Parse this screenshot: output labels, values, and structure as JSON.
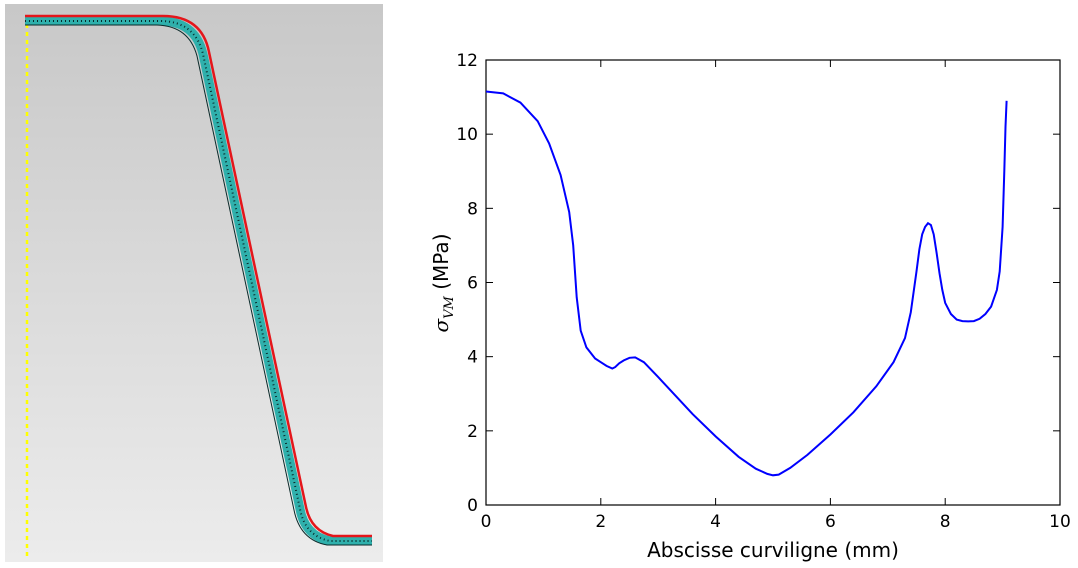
{
  "mesh_figure": {
    "colors": {
      "background_top": "#c8c8c8",
      "background_bottom": "#ececec",
      "symmetry_axis": "#ffff00",
      "mesh_fill": "#2fb0ac",
      "mesh_edges": "#0a2a2a",
      "outer_surface": "#e4161b"
    }
  },
  "chart_data": {
    "type": "line",
    "xlabel": "Abscisse curviligne (mm)",
    "ylabel_symbol": "σ",
    "ylabel_subscript": "VM",
    "ylabel_unit": " (MPa)",
    "xlim": [
      0,
      10
    ],
    "ylim": [
      0,
      12
    ],
    "xticks": [
      0,
      2,
      4,
      6,
      8,
      10
    ],
    "yticks": [
      0,
      2,
      4,
      6,
      8,
      10,
      12
    ],
    "grid": false,
    "series_color": "#0000ff",
    "series": [
      {
        "x": [
          0,
          0.3,
          0.6,
          0.9,
          1.1,
          1.3,
          1.45,
          1.52,
          1.58,
          1.65,
          1.75,
          1.9,
          2.0,
          2.1,
          2.2,
          2.25,
          2.32,
          2.4,
          2.5,
          2.6,
          2.75,
          3.0,
          3.3,
          3.6,
          4.0,
          4.4,
          4.7,
          4.9,
          5.0,
          5.1,
          5.3,
          5.6,
          6.0,
          6.4,
          6.8,
          7.1,
          7.3,
          7.4,
          7.5,
          7.55,
          7.6,
          7.65,
          7.7,
          7.75,
          7.8,
          7.85,
          7.9,
          7.95,
          8.0,
          8.1,
          8.2,
          8.3,
          8.4,
          8.5,
          8.6,
          8.7,
          8.8,
          8.9,
          8.95,
          9.0,
          9.03,
          9.05,
          9.07
        ],
        "y": [
          11.15,
          11.1,
          10.85,
          10.35,
          9.75,
          8.9,
          7.9,
          7.0,
          5.6,
          4.7,
          4.25,
          3.95,
          3.85,
          3.75,
          3.68,
          3.72,
          3.82,
          3.9,
          3.97,
          3.98,
          3.85,
          3.45,
          2.95,
          2.45,
          1.85,
          1.3,
          0.98,
          0.84,
          0.8,
          0.82,
          1.0,
          1.35,
          1.9,
          2.5,
          3.2,
          3.85,
          4.5,
          5.2,
          6.3,
          6.9,
          7.3,
          7.5,
          7.6,
          7.55,
          7.3,
          6.8,
          6.25,
          5.8,
          5.45,
          5.15,
          5.0,
          4.96,
          4.95,
          4.96,
          5.02,
          5.15,
          5.35,
          5.8,
          6.3,
          7.5,
          9.0,
          10.2,
          10.9
        ]
      }
    ]
  }
}
